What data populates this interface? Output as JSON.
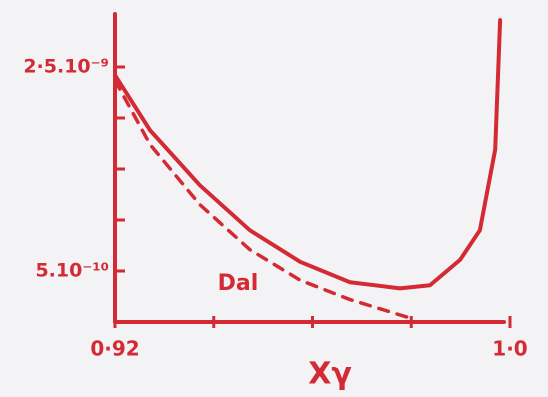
{
  "chart_data": {
    "type": "line",
    "x_label": "Xγ",
    "color": "#d42a33",
    "xlim": [
      0.92,
      1.0
    ],
    "xticks": [
      {
        "value": 0.92,
        "label": "0·92"
      },
      {
        "value": 0.94,
        "label": null
      },
      {
        "value": 0.96,
        "label": null
      },
      {
        "value": 0.98,
        "label": null
      },
      {
        "value": 1.0,
        "label": "1·0"
      }
    ],
    "ylim": [
      0,
      3e-09
    ],
    "yticks": [
      {
        "value": 5e-10,
        "label": "5.10⁻¹⁰"
      },
      {
        "value": 1e-09,
        "label": null
      },
      {
        "value": 1.5e-09,
        "label": null
      },
      {
        "value": 2e-09,
        "label": null
      },
      {
        "value": 2.5e-09,
        "label": "2·5.10⁻⁹"
      }
    ],
    "series": [
      {
        "style": "solid",
        "x": [
          0.92,
          0.9271,
          0.9372,
          0.9473,
          0.9575,
          0.9676,
          0.9777,
          0.9838,
          0.9899,
          0.9939,
          0.997,
          0.998
        ],
        "values": [
          2.42e-09,
          1.88e-09,
          1.34e-09,
          9e-10,
          5.9e-10,
          3.9e-10,
          3.3e-10,
          3.6e-10,
          6.1e-10,
          9e-10,
          1.69e-09,
          2.96e-09
        ]
      },
      {
        "name": "Dal",
        "style": "dashed",
        "x": [
          0.92,
          0.9271,
          0.9372,
          0.9473,
          0.9575,
          0.9676,
          0.9797
        ],
        "values": [
          2.37e-09,
          1.74e-09,
          1.15e-09,
          7.1e-10,
          4.1e-10,
          2.2e-10,
          4e-11
        ]
      }
    ]
  }
}
